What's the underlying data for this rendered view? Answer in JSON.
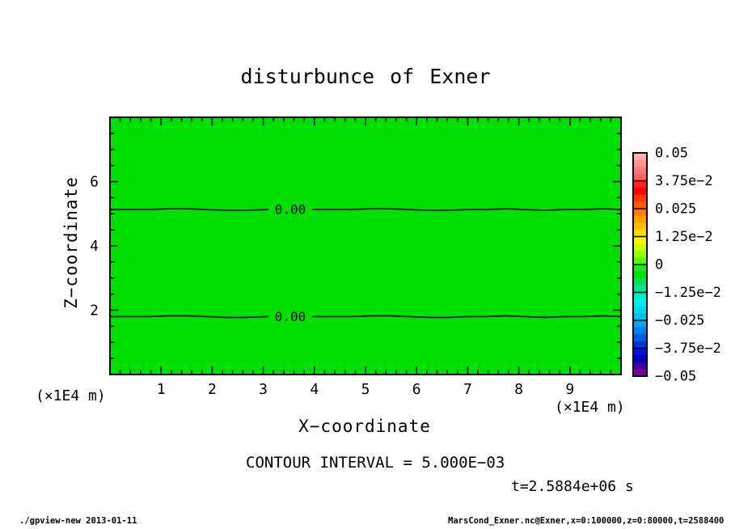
{
  "title": "disturbunce of Exner",
  "plot": {
    "fill_color": "#00e000",
    "x_axis": {
      "label": "X−coordinate",
      "unit_left": "(×1E4 m)",
      "unit_right": "(×1E4 m)",
      "range": [
        0,
        10
      ],
      "major_ticks": [
        1,
        2,
        3,
        4,
        5,
        6,
        7,
        8,
        9
      ],
      "minor_step": 0.2
    },
    "y_axis": {
      "label": "Z−coordinate",
      "range": [
        0,
        8
      ],
      "major_ticks": [
        2,
        4,
        6
      ],
      "minor_step": 0.5
    },
    "contours": [
      {
        "label": "0.00",
        "z": 5.13
      },
      {
        "label": "0.00",
        "z": 1.8
      }
    ]
  },
  "colorbar": {
    "labels": [
      "0.05",
      "3.75e−2",
      "0.025",
      "1.25e−2",
      "0",
      "−1.25e−2",
      "−0.025",
      "−3.75e−2",
      "−0.05"
    ],
    "colors": [
      "#ffb0b0",
      "#ff9595",
      "#ff7a7a",
      "#ff6060",
      "#ff2020",
      "#ff0000",
      "#ff3800",
      "#ff5c00",
      "#ff7c00",
      "#ff9c00",
      "#ffbc00",
      "#ffdc00",
      "#fff400",
      "#ccff00",
      "#94ff00",
      "#50ff00",
      "#20e820",
      "#00e000",
      "#00e256",
      "#00e89c",
      "#00eec4",
      "#00eeee",
      "#00d8f0",
      "#00c0f0",
      "#00a4f0",
      "#0080e8",
      "#005ce0",
      "#0038d8",
      "#0010e0",
      "#0000bc",
      "#3c00a8",
      "#780098"
    ]
  },
  "captions": {
    "contour_interval": "CONTOUR INTERVAL = 5.000E−03",
    "time": "t=2.5884e+06 s"
  },
  "footer": {
    "left": "./gpview-new  2013-01-11",
    "right": "MarsCond_Exner.nc@Exner,x=0:100000,z=0:80000,t=2588400"
  },
  "chart_data": {
    "type": "heatmap",
    "title": "disturbunce of Exner",
    "xlabel": "X-coordinate (x1E4 m)",
    "ylabel": "Z-coordinate (x1E4 m)",
    "xlim": [
      0,
      10
    ],
    "ylim": [
      0,
      8
    ],
    "x_major_ticks": [
      1,
      2,
      3,
      4,
      5,
      6,
      7,
      8,
      9
    ],
    "y_major_ticks": [
      2,
      4,
      6
    ],
    "colorbar_levels": [
      0.05,
      0.0375,
      0.025,
      0.0125,
      0,
      -0.0125,
      -0.025,
      -0.0375,
      -0.05
    ],
    "contour_interval": 0.005,
    "contour_lines": [
      {
        "level": 0.0,
        "label": "0.00",
        "z_position": 5.13
      },
      {
        "level": 0.0,
        "label": "0.00",
        "z_position": 1.8
      }
    ],
    "field_note": "uniform green fill: Exner disturbance lies in the 0 band over the whole domain",
    "time_stamp": "t=2.5884e+06 s",
    "legend_position": "right colorbar",
    "grid": false
  }
}
